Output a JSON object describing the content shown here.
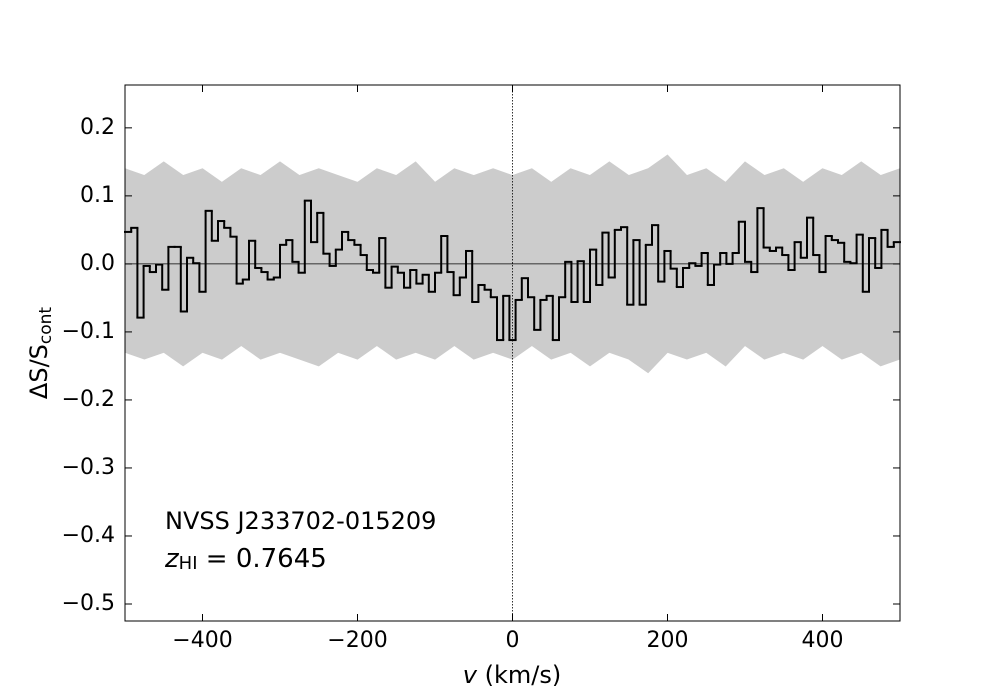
{
  "chart_data": {
    "type": "step",
    "xlabel": {
      "italic": "v",
      "rest": " (km/s)"
    },
    "ylabel": {
      "main": "ΔS/S",
      "sub": "cont"
    },
    "annotations": [
      {
        "text": "NVSS J233702-015209"
      },
      {
        "italic": "z",
        "sub": "HI",
        "rest": " = 0.7645"
      }
    ],
    "xlim": [
      -500,
      500
    ],
    "ylim": [
      -0.525,
      0.263
    ],
    "xticks": [
      {
        "value": -400,
        "label": "−400"
      },
      {
        "value": -200,
        "label": "−200"
      },
      0,
      200,
      400
    ],
    "yticks": [
      {
        "value": -0.5,
        "label": "−0.5"
      },
      {
        "value": -0.4,
        "label": "−0.4"
      },
      {
        "value": -0.3,
        "label": "−0.3"
      },
      {
        "value": -0.2,
        "label": "−0.2"
      },
      {
        "value": -0.1,
        "label": "−0.1"
      },
      {
        "value": 0,
        "label": "0.0"
      },
      0.1,
      0.2
    ],
    "hline": 0,
    "vline": 0,
    "band": {
      "color": "#cccccc",
      "x": [
        -500,
        -475,
        -450,
        -425,
        -400,
        -375,
        -350,
        -325,
        -300,
        -275,
        -250,
        -225,
        -200,
        -175,
        -150,
        -125,
        -100,
        -75,
        -50,
        -25,
        0,
        25,
        50,
        75,
        100,
        125,
        150,
        175,
        200,
        225,
        250,
        275,
        300,
        325,
        350,
        375,
        400,
        425,
        450,
        475,
        500
      ],
      "upper": [
        0.14,
        0.13,
        0.15,
        0.13,
        0.14,
        0.12,
        0.14,
        0.13,
        0.15,
        0.13,
        0.14,
        0.13,
        0.12,
        0.14,
        0.13,
        0.15,
        0.12,
        0.14,
        0.13,
        0.14,
        0.13,
        0.14,
        0.12,
        0.14,
        0.13,
        0.15,
        0.13,
        0.14,
        0.16,
        0.13,
        0.14,
        0.12,
        0.15,
        0.13,
        0.14,
        0.12,
        0.14,
        0.13,
        0.15,
        0.13,
        0.14
      ],
      "lower": [
        -0.13,
        -0.14,
        -0.13,
        -0.15,
        -0.13,
        -0.14,
        -0.12,
        -0.14,
        -0.13,
        -0.14,
        -0.15,
        -0.13,
        -0.14,
        -0.12,
        -0.14,
        -0.13,
        -0.14,
        -0.12,
        -0.14,
        -0.13,
        -0.14,
        -0.12,
        -0.14,
        -0.13,
        -0.15,
        -0.13,
        -0.14,
        -0.16,
        -0.13,
        -0.14,
        -0.13,
        -0.15,
        -0.12,
        -0.14,
        -0.13,
        -0.14,
        -0.12,
        -0.14,
        -0.13,
        -0.15,
        -0.14
      ]
    },
    "x": [
      -496,
      -488,
      -480,
      -472,
      -464,
      -456,
      -448,
      -440,
      -432,
      -424,
      -416,
      -408,
      -400,
      -392,
      -384,
      -376,
      -368,
      -360,
      -352,
      -344,
      -336,
      -328,
      -320,
      -312,
      -304,
      -296,
      -288,
      -280,
      -272,
      -264,
      -256,
      -248,
      -240,
      -232,
      -224,
      -216,
      -208,
      -200,
      -192,
      -184,
      -176,
      -168,
      -160,
      -152,
      -144,
      -136,
      -128,
      -120,
      -112,
      -104,
      -96,
      -88,
      -80,
      -72,
      -64,
      -56,
      -48,
      -40,
      -32,
      -24,
      -16,
      -8,
      0,
      8,
      16,
      24,
      32,
      40,
      48,
      56,
      64,
      72,
      80,
      88,
      96,
      104,
      112,
      120,
      128,
      136,
      144,
      152,
      160,
      168,
      176,
      184,
      192,
      200,
      208,
      216,
      224,
      232,
      240,
      248,
      256,
      264,
      272,
      280,
      288,
      296,
      304,
      312,
      320,
      328,
      336,
      344,
      352,
      360,
      368,
      376,
      384,
      392,
      400,
      408,
      416,
      424,
      432,
      440,
      448,
      456,
      464,
      472,
      480,
      488,
      496
    ],
    "series": [
      {
        "color": "#000000",
        "values": [
          0.047,
          0.053,
          -0.079,
          -0.003,
          -0.012,
          -0.001,
          -0.038,
          0.025,
          0.025,
          -0.07,
          0.009,
          0.001,
          -0.041,
          0.078,
          0.034,
          0.063,
          0.053,
          0.04,
          -0.029,
          -0.023,
          0.034,
          -0.006,
          -0.012,
          -0.023,
          -0.02,
          0.028,
          0.035,
          0.003,
          -0.013,
          0.093,
          0.032,
          0.075,
          0.015,
          -0.003,
          0.021,
          0.047,
          0.035,
          0.028,
          0.013,
          -0.009,
          -0.013,
          0.038,
          -0.035,
          -0.004,
          -0.013,
          -0.035,
          -0.009,
          -0.029,
          -0.016,
          -0.041,
          -0.013,
          0.041,
          -0.012,
          -0.046,
          -0.02,
          0.019,
          -0.056,
          -0.031,
          -0.038,
          -0.049,
          -0.112,
          -0.047,
          -0.112,
          -0.053,
          -0.021,
          -0.049,
          -0.097,
          -0.053,
          -0.047,
          -0.112,
          -0.049,
          0.003,
          -0.056,
          0.004,
          -0.056,
          0.021,
          -0.031,
          0.046,
          -0.02,
          0.05,
          0.054,
          -0.06,
          0.035,
          -0.06,
          0.028,
          0.057,
          -0.026,
          0.019,
          -0.007,
          -0.034,
          -0.006,
          0.001,
          -0.003,
          0.016,
          -0.031,
          -0.001,
          0.016,
          0,
          0.016,
          0.062,
          0.003,
          -0.012,
          0.082,
          0.024,
          0.019,
          0.024,
          0.013,
          -0.009,
          0.032,
          0.009,
          0.068,
          0.013,
          -0.012,
          0.041,
          0.035,
          0.031,
          0.003,
          0.001,
          0.043,
          -0.041,
          0.038,
          -0.006,
          0.05,
          0.025,
          0.032
        ]
      }
    ]
  }
}
